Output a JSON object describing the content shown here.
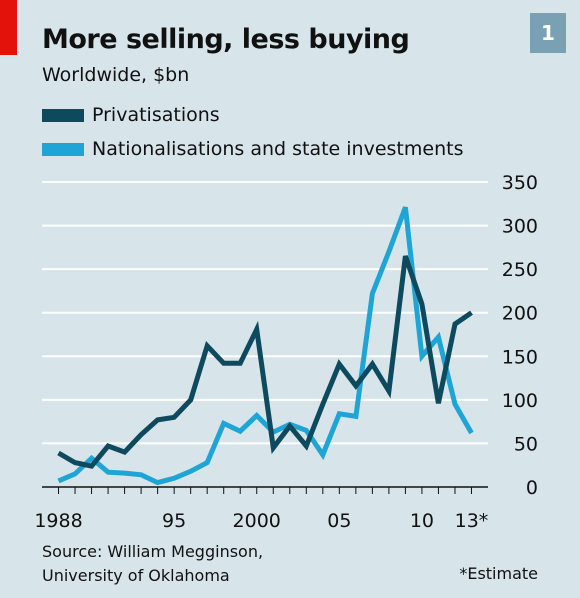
{
  "chart_data": {
    "type": "line",
    "title": "More selling, less buying",
    "subtitle": "Worldwide, $bn",
    "badge": "1",
    "xlabel": "",
    "ylabel": "",
    "x": [
      1988,
      1989,
      1990,
      1991,
      1992,
      1993,
      1994,
      1995,
      1996,
      1997,
      1998,
      1999,
      2000,
      2001,
      2002,
      2003,
      2004,
      2005,
      2006,
      2007,
      2008,
      2009,
      2010,
      2011,
      2012,
      2013
    ],
    "xticks": [
      {
        "x": 1988,
        "label": "1988"
      },
      {
        "x": 1995,
        "label": "95"
      },
      {
        "x": 2000,
        "label": "2000"
      },
      {
        "x": 2005,
        "label": "05"
      },
      {
        "x": 2010,
        "label": "10"
      },
      {
        "x": 2013,
        "label": "13*"
      }
    ],
    "yticks": [
      0,
      50,
      100,
      150,
      200,
      250,
      300,
      350
    ],
    "ylim": [
      0,
      350
    ],
    "xlim": [
      1987,
      2014
    ],
    "grid": true,
    "series": [
      {
        "name": "Privatisations",
        "color": "#0e4a5e",
        "x": [
          1988,
          1989,
          1990,
          1991,
          1992,
          1993,
          1994,
          1995,
          1996,
          1997,
          1998,
          1999,
          2000,
          2001,
          2002,
          2003,
          2004,
          2005,
          2006,
          2007,
          2008,
          2009,
          2010,
          2011,
          2012,
          2013
        ],
        "values": [
          39,
          28,
          24,
          47,
          40,
          60,
          77,
          80,
          100,
          162,
          142,
          142,
          181,
          45,
          70,
          47,
          95,
          141,
          116,
          141,
          110,
          265,
          210,
          96,
          187,
          200
        ]
      },
      {
        "name": "Nationalisations and state investments",
        "color": "#1ea5d6",
        "x": [
          1988,
          1989,
          1990,
          1991,
          1992,
          1993,
          1994,
          1995,
          1996,
          1997,
          1998,
          1999,
          2000,
          2001,
          2002,
          2003,
          2004,
          2005,
          2006,
          2007,
          2008,
          2009,
          2010,
          2011,
          2012,
          2013
        ],
        "values": [
          7,
          15,
          33,
          17,
          16,
          14,
          5,
          10,
          18,
          28,
          73,
          64,
          82,
          63,
          72,
          65,
          37,
          84,
          81,
          222,
          270,
          321,
          150,
          172,
          95,
          62
        ]
      }
    ]
  },
  "source": {
    "line1": "Source: William Megginson,",
    "line2": "University of Oklahoma"
  },
  "footnote": "*Estimate"
}
